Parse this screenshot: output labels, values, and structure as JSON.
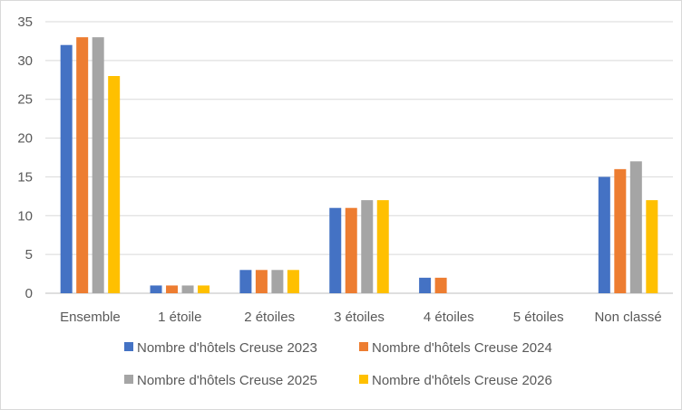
{
  "chart_data": {
    "type": "bar",
    "categories": [
      "Ensemble",
      "1 étoile",
      "2 étoiles",
      "3 étoiles",
      "4 étoiles",
      "5 étoiles",
      "Non classé"
    ],
    "series": [
      {
        "name": "Nombre d'hôtels Creuse 2023",
        "color": "#4472C4",
        "values": [
          32,
          1,
          3,
          11,
          2,
          0,
          15
        ]
      },
      {
        "name": "Nombre d'hôtels Creuse 2024",
        "color": "#ED7D31",
        "values": [
          33,
          1,
          3,
          11,
          2,
          0,
          16
        ]
      },
      {
        "name": "Nombre d'hôtels Creuse 2025",
        "color": "#A5A5A5",
        "values": [
          33,
          1,
          3,
          12,
          0,
          0,
          17
        ]
      },
      {
        "name": "Nombre d'hôtels Creuse 2026",
        "color": "#FFC000",
        "values": [
          28,
          1,
          3,
          12,
          0,
          0,
          12
        ]
      }
    ],
    "yticks": [
      0,
      5,
      10,
      15,
      20,
      25,
      30,
      35
    ],
    "ylim": [
      0,
      35
    ],
    "grid": true,
    "legend_position": "bottom",
    "title": "",
    "xlabel": "",
    "ylabel": ""
  }
}
